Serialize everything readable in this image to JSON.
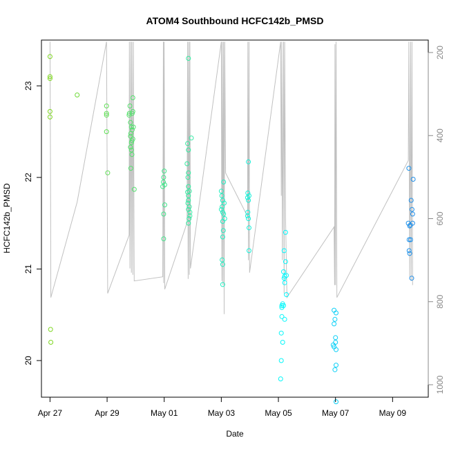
{
  "chart_data": {
    "type": "scatter",
    "title": "ATOM4 Southbound HCFC142b_PMSD",
    "xlabel": "Date",
    "ylabel": "HCFC142b_PMSD",
    "x_range_days": [
      -0.3,
      13.25
    ],
    "ylim": [
      19.6,
      23.5
    ],
    "y2lim": [
      1030,
      170
    ],
    "x_ticks": [
      {
        "day": 0,
        "label": "Apr 27"
      },
      {
        "day": 2,
        "label": "Apr 29"
      },
      {
        "day": 4,
        "label": "May 01"
      },
      {
        "day": 6,
        "label": "May 03"
      },
      {
        "day": 8,
        "label": "May 05"
      },
      {
        "day": 10,
        "label": "May 07"
      },
      {
        "day": 12,
        "label": "May 09"
      }
    ],
    "y_ticks": [
      20,
      21,
      22,
      23
    ],
    "y2_ticks": [
      200,
      400,
      600,
      800,
      1000
    ],
    "points": [
      [
        0.0,
        23.32
      ],
      [
        0.0,
        23.1
      ],
      [
        0.0,
        23.08
      ],
      [
        0.0,
        22.72
      ],
      [
        0.0,
        22.66
      ],
      [
        0.02,
        20.34
      ],
      [
        0.03,
        20.2
      ],
      [
        0.95,
        22.9
      ],
      [
        1.98,
        22.78
      ],
      [
        1.98,
        22.7
      ],
      [
        1.98,
        22.68
      ],
      [
        1.98,
        22.5
      ],
      [
        2.02,
        22.05
      ],
      [
        2.8,
        22.78
      ],
      [
        2.78,
        22.7
      ],
      [
        2.77,
        22.68
      ],
      [
        2.82,
        22.6
      ],
      [
        2.85,
        22.55
      ],
      [
        2.83,
        22.48
      ],
      [
        2.82,
        22.45
      ],
      [
        2.85,
        22.38
      ],
      [
        2.82,
        22.33
      ],
      [
        2.85,
        22.3
      ],
      [
        2.87,
        22.25
      ],
      [
        2.83,
        22.1
      ],
      [
        2.9,
        22.87
      ],
      [
        2.9,
        22.72
      ],
      [
        2.88,
        22.7
      ],
      [
        2.92,
        22.55
      ],
      [
        2.88,
        22.52
      ],
      [
        2.9,
        22.42
      ],
      [
        2.87,
        22.4
      ],
      [
        2.95,
        21.87
      ],
      [
        4.0,
        22.07
      ],
      [
        3.98,
        22.0
      ],
      [
        3.97,
        21.95
      ],
      [
        4.02,
        21.92
      ],
      [
        3.95,
        21.9
      ],
      [
        4.02,
        21.7
      ],
      [
        3.98,
        21.6
      ],
      [
        3.98,
        21.33
      ],
      [
        4.85,
        23.3
      ],
      [
        4.82,
        22.37
      ],
      [
        4.85,
        22.3
      ],
      [
        4.8,
        22.15
      ],
      [
        4.85,
        22.05
      ],
      [
        4.83,
        22.0
      ],
      [
        4.85,
        21.9
      ],
      [
        4.88,
        21.85
      ],
      [
        4.82,
        21.84
      ],
      [
        4.85,
        21.8
      ],
      [
        4.85,
        21.75
      ],
      [
        4.83,
        21.72
      ],
      [
        4.88,
        21.68
      ],
      [
        4.85,
        21.65
      ],
      [
        4.9,
        21.62
      ],
      [
        4.9,
        21.58
      ],
      [
        4.87,
        21.55
      ],
      [
        4.85,
        21.5
      ],
      [
        4.95,
        22.43
      ],
      [
        6.0,
        21.85
      ],
      [
        6.02,
        21.8
      ],
      [
        6.08,
        21.95
      ],
      [
        6.05,
        21.75
      ],
      [
        6.1,
        21.72
      ],
      [
        6.03,
        21.68
      ],
      [
        6.0,
        21.65
      ],
      [
        6.05,
        21.62
      ],
      [
        6.08,
        21.6
      ],
      [
        6.12,
        21.55
      ],
      [
        6.05,
        21.52
      ],
      [
        6.07,
        21.42
      ],
      [
        6.05,
        21.35
      ],
      [
        6.03,
        21.1
      ],
      [
        6.05,
        21.05
      ],
      [
        6.05,
        20.83
      ],
      [
        6.95,
        22.17
      ],
      [
        6.93,
        21.83
      ],
      [
        6.97,
        21.8
      ],
      [
        6.92,
        21.78
      ],
      [
        6.95,
        21.75
      ],
      [
        6.93,
        21.62
      ],
      [
        6.92,
        21.58
      ],
      [
        6.95,
        21.55
      ],
      [
        6.97,
        21.45
      ],
      [
        6.97,
        21.2
      ],
      [
        8.25,
        21.4
      ],
      [
        8.2,
        21.2
      ],
      [
        8.25,
        21.08
      ],
      [
        8.18,
        20.97
      ],
      [
        8.22,
        20.92
      ],
      [
        8.28,
        20.93
      ],
      [
        8.2,
        20.9
      ],
      [
        8.22,
        20.85
      ],
      [
        8.28,
        20.72
      ],
      [
        8.12,
        20.6
      ],
      [
        8.15,
        20.62
      ],
      [
        8.18,
        20.6
      ],
      [
        8.12,
        20.58
      ],
      [
        8.22,
        20.45
      ],
      [
        8.12,
        20.48
      ],
      [
        8.1,
        20.3
      ],
      [
        8.15,
        20.2
      ],
      [
        8.1,
        20.0
      ],
      [
        8.08,
        19.8
      ],
      [
        9.95,
        20.55
      ],
      [
        10.02,
        20.52
      ],
      [
        9.98,
        20.45
      ],
      [
        9.95,
        20.4
      ],
      [
        10.0,
        20.25
      ],
      [
        10.0,
        20.2
      ],
      [
        9.92,
        20.17
      ],
      [
        9.95,
        20.15
      ],
      [
        10.02,
        20.12
      ],
      [
        10.02,
        19.95
      ],
      [
        9.98,
        19.9
      ],
      [
        10.02,
        19.55
      ],
      [
        12.57,
        22.1
      ],
      [
        12.72,
        21.98
      ],
      [
        12.65,
        21.75
      ],
      [
        12.68,
        21.65
      ],
      [
        12.7,
        21.6
      ],
      [
        12.55,
        21.5
      ],
      [
        12.62,
        21.48
      ],
      [
        12.7,
        21.5
      ],
      [
        12.6,
        21.47
      ],
      [
        12.58,
        21.32
      ],
      [
        12.63,
        21.32
      ],
      [
        12.58,
        21.2
      ],
      [
        12.6,
        21.17
      ],
      [
        12.67,
        20.9
      ]
    ],
    "pressure_trace": [
      [
        0.0,
        174
      ],
      [
        0.02,
        520
      ],
      [
        0.03,
        790
      ],
      [
        0.95,
        560
      ],
      [
        1.98,
        174
      ],
      [
        2.0,
        475
      ],
      [
        2.02,
        780
      ],
      [
        2.77,
        640
      ],
      [
        2.78,
        174
      ],
      [
        2.8,
        720
      ],
      [
        2.83,
        174
      ],
      [
        2.85,
        730
      ],
      [
        2.87,
        174
      ],
      [
        2.9,
        735
      ],
      [
        2.92,
        174
      ],
      [
        2.95,
        750
      ],
      [
        3.95,
        740
      ],
      [
        3.97,
        174
      ],
      [
        3.98,
        755
      ],
      [
        4.0,
        174
      ],
      [
        4.02,
        770
      ],
      [
        4.8,
        610
      ],
      [
        4.82,
        174
      ],
      [
        4.84,
        745
      ],
      [
        4.86,
        174
      ],
      [
        4.88,
        735
      ],
      [
        4.9,
        174
      ],
      [
        4.92,
        720
      ],
      [
        6.0,
        174
      ],
      [
        6.02,
        750
      ],
      [
        6.04,
        174
      ],
      [
        6.06,
        760
      ],
      [
        6.08,
        174
      ],
      [
        6.1,
        830
      ],
      [
        6.12,
        174
      ],
      [
        6.15,
        490
      ],
      [
        6.92,
        595
      ],
      [
        6.93,
        174
      ],
      [
        6.95,
        700
      ],
      [
        6.97,
        174
      ],
      [
        6.99,
        730
      ],
      [
        8.08,
        174
      ],
      [
        8.1,
        545
      ],
      [
        8.12,
        174
      ],
      [
        8.14,
        700
      ],
      [
        8.18,
        174
      ],
      [
        8.2,
        780
      ],
      [
        8.22,
        174
      ],
      [
        8.25,
        600
      ],
      [
        8.3,
        790
      ],
      [
        9.95,
        620
      ],
      [
        9.97,
        760
      ],
      [
        9.98,
        180
      ],
      [
        10.0,
        760
      ],
      [
        10.02,
        174
      ],
      [
        10.05,
        790
      ],
      [
        12.55,
        460
      ],
      [
        12.57,
        174
      ],
      [
        12.6,
        740
      ],
      [
        12.63,
        174
      ],
      [
        12.65,
        750
      ],
      [
        12.68,
        174
      ],
      [
        12.7,
        760
      ]
    ],
    "colors": {
      "trace": "#c0c0c0",
      "axis": "#000000",
      "right_axis": "#888888",
      "gradient_start": "#7dd61e",
      "gradient_mid": "#00f8ff",
      "gradient_end": "#1f8be8"
    }
  }
}
